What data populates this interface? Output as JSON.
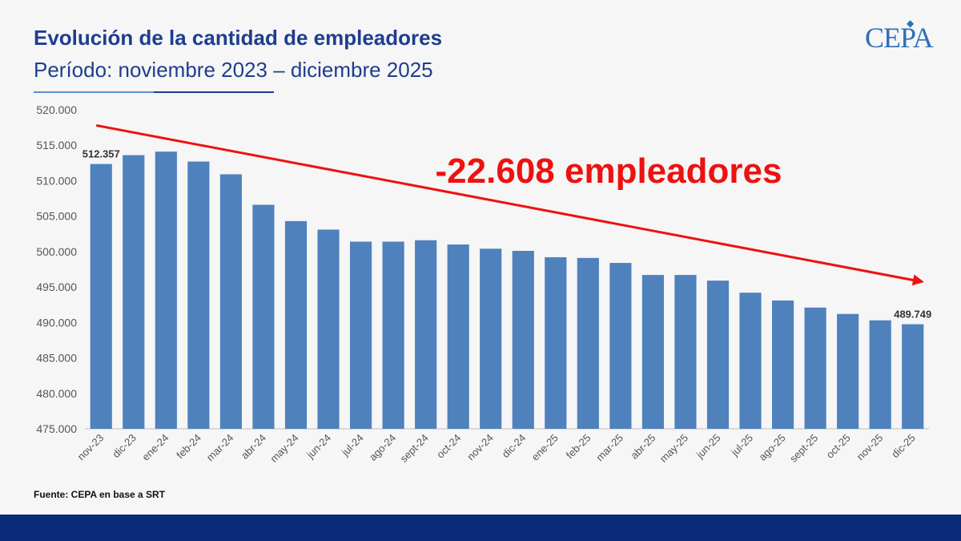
{
  "header": {
    "title": "Evolución de la cantidad de empleadores",
    "subtitle": "Período: noviembre 2023 – diciembre 2025"
  },
  "logo": {
    "text": "CEPA"
  },
  "footer": {
    "source": "Fuente: CEPA en base a SRT"
  },
  "colors": {
    "title": "#1f3d8f",
    "bar": "#4f81bd",
    "trend": "#ee1111",
    "footer_bar": "#0a2a7a"
  },
  "chart_data": {
    "type": "bar",
    "title": "",
    "xlabel": "",
    "ylabel": "",
    "ylim": [
      475000,
      520000
    ],
    "y_ticks": [
      475000,
      480000,
      485000,
      490000,
      495000,
      500000,
      505000,
      510000,
      515000,
      520000
    ],
    "y_tick_labels": [
      "475.000",
      "480.000",
      "485.000",
      "490.000",
      "495.000",
      "500.000",
      "505.000",
      "510.000",
      "515.000",
      "520.000"
    ],
    "grid": false,
    "categories": [
      "nov-23",
      "dic-23",
      "ene-24",
      "feb-24",
      "mar-24",
      "abr-24",
      "may-24",
      "jun-24",
      "jul-24",
      "ago-24",
      "sept-24",
      "oct-24",
      "nov-24",
      "dic-24",
      "ene-25",
      "feb-25",
      "mar-25",
      "abr-25",
      "may-25",
      "jun-25",
      "jul-25",
      "ago-25",
      "sept-25",
      "oct-25",
      "nov-25",
      "dic-25"
    ],
    "values": [
      512357,
      513600,
      514100,
      512700,
      510900,
      506600,
      504300,
      503100,
      501400,
      501400,
      501600,
      501000,
      500400,
      500100,
      499200,
      499100,
      498400,
      496700,
      496700,
      495900,
      494200,
      493100,
      492100,
      491200,
      490300,
      489749
    ],
    "data_labels": [
      {
        "index": 0,
        "text": "512.357"
      },
      {
        "index": 25,
        "text": "489.749"
      }
    ],
    "annotation": {
      "text": "-22.608 empleadores",
      "arrow_from_category": "nov-23",
      "arrow_to_category": "dic-25",
      "arrow_start_value": 517800,
      "arrow_end_value": 495700
    }
  }
}
